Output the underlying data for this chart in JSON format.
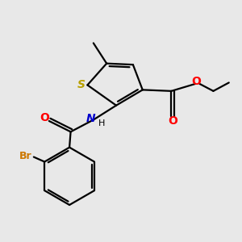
{
  "background_color": "#e8e8e8",
  "bond_color": "#000000",
  "S_color": "#b8a000",
  "N_color": "#0000cc",
  "O_color": "#ff0000",
  "Br_color": "#cc7700",
  "C_color": "#000000",
  "S_label": "S",
  "N_label": "N",
  "H_label": "H",
  "O_label": "O",
  "Br_label": "Br",
  "figsize": [
    3.0,
    3.0
  ],
  "dpi": 100
}
